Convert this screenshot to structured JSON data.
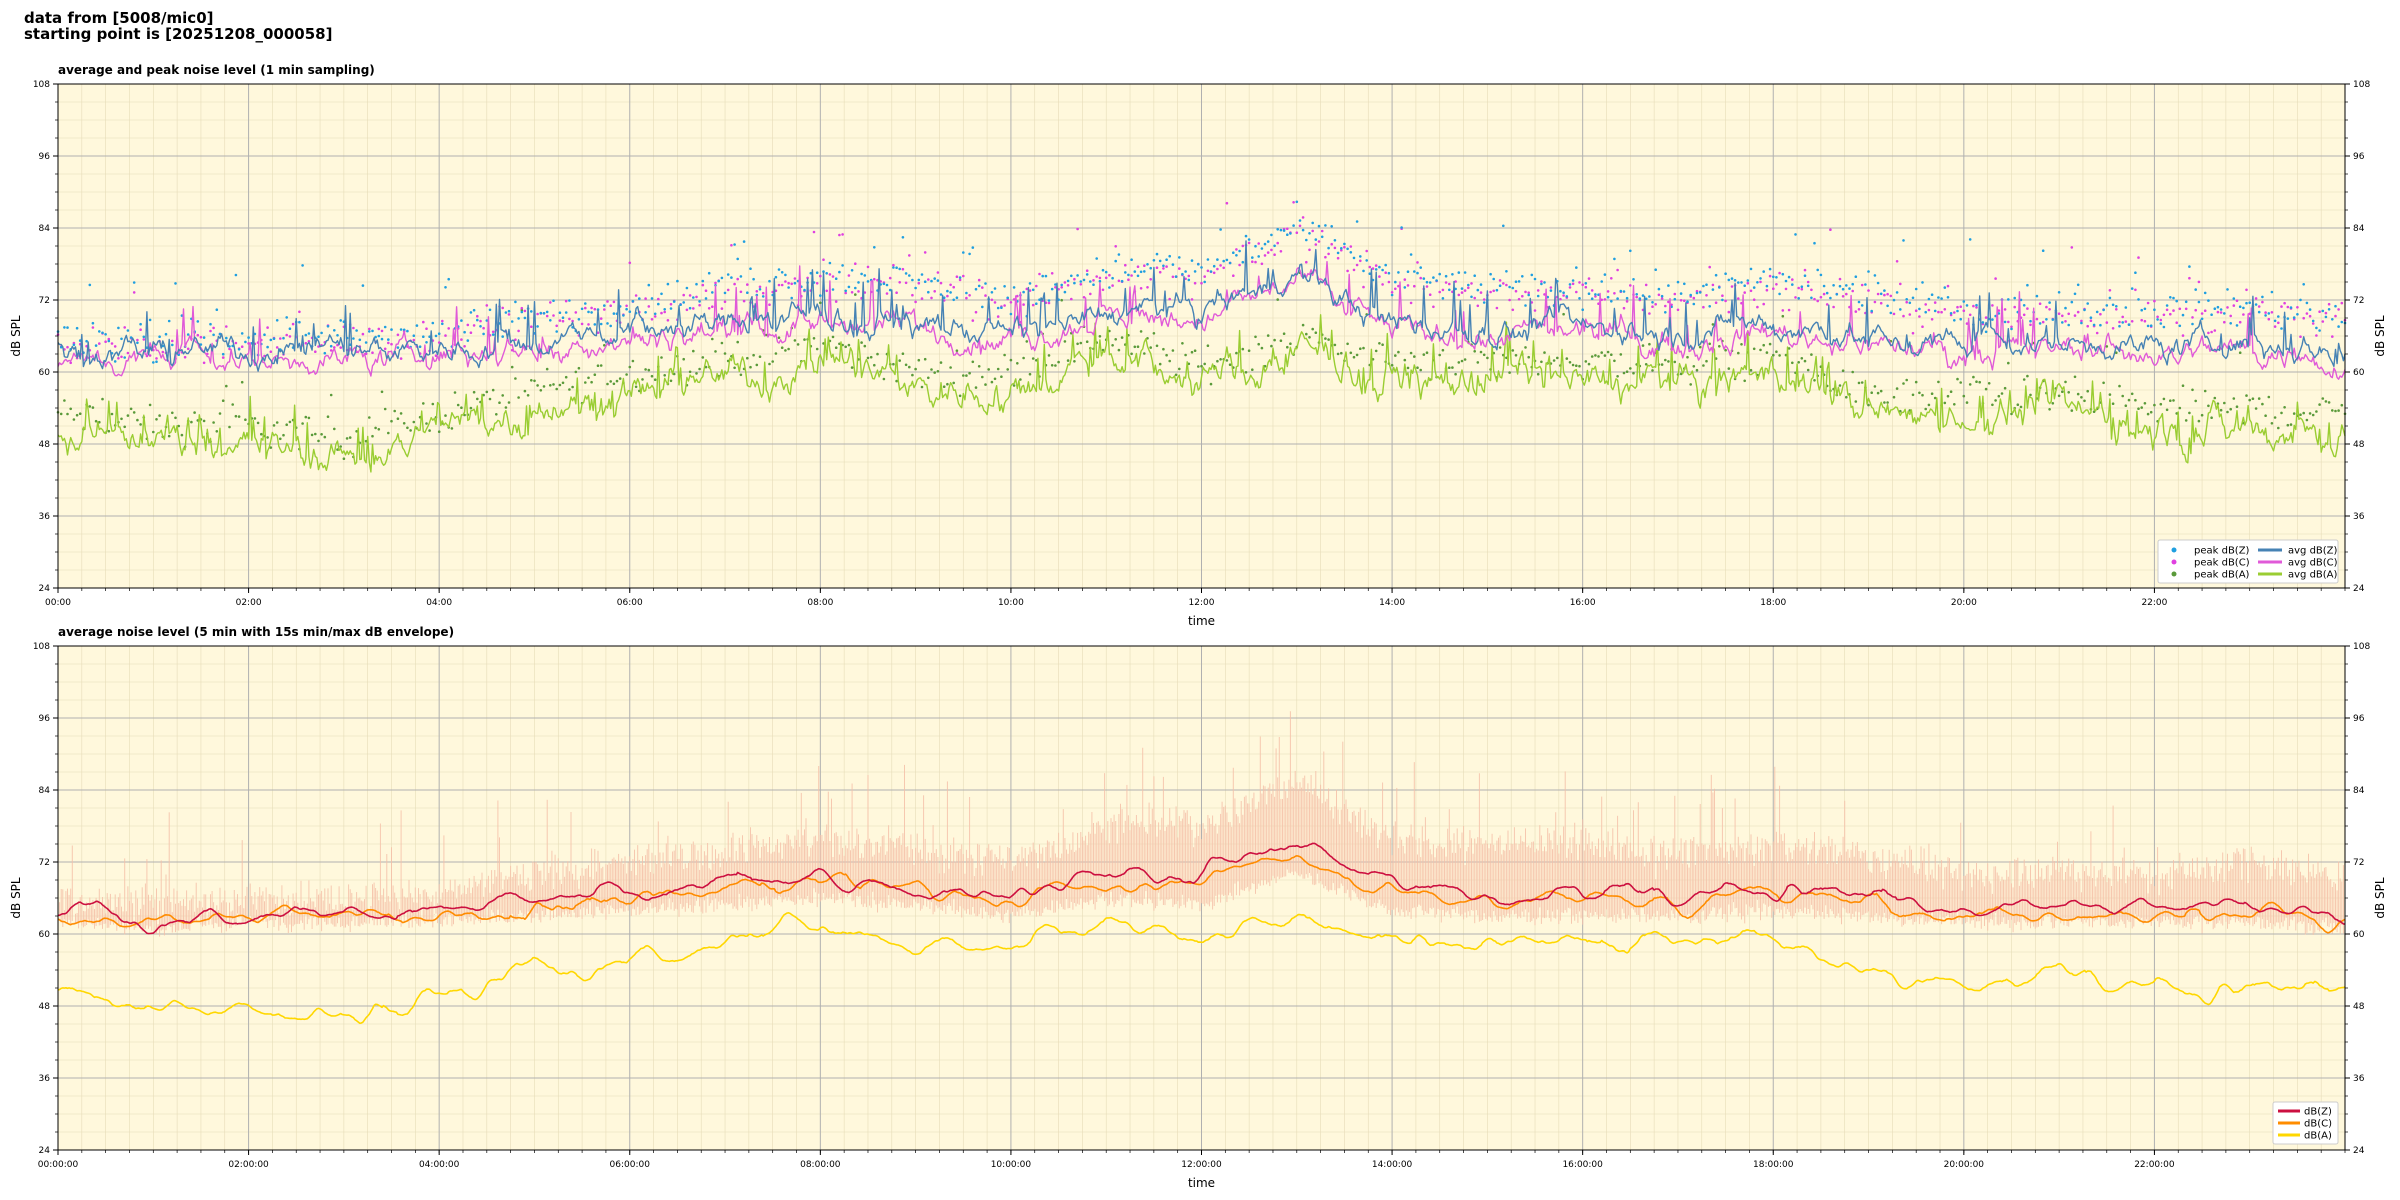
{
  "header": {
    "line1": "data from [5008/mic0]",
    "line2": "starting point is [20251208_000058]"
  },
  "colors": {
    "background": "#fff8dc",
    "peak_z": "#1f9fe0",
    "peak_c": "#e040e0",
    "peak_a": "#5a9a3a",
    "avg_z": "#4682b4",
    "avg_c": "#e05ad8",
    "avg_a": "#9acd32",
    "db_z": "#cc1040",
    "db_c": "#ff8c00",
    "db_a": "#ffd700",
    "envelope": "#f5c0a8"
  },
  "chart_data": [
    {
      "type": "line",
      "title": "average and peak noise level (1 min sampling)",
      "xlabel": "time",
      "ylabel": "dB SPL",
      "ylim": [
        24,
        108
      ],
      "xlim_hours": [
        0,
        24
      ],
      "yticks": [
        "24",
        "36",
        "48",
        "60",
        "72",
        "84",
        "96",
        "108"
      ],
      "xtick_labels": [
        "00:00",
        "02:00",
        "04:00",
        "06:00",
        "08:00",
        "10:00",
        "12:00",
        "14:00",
        "16:00",
        "18:00",
        "20:00",
        "22:00"
      ],
      "grid": true,
      "legend_position": "bottom-right",
      "legend": [
        {
          "name": "peak dB(Z)",
          "kind": "dot",
          "color_key": "peak_z"
        },
        {
          "name": "peak dB(C)",
          "kind": "dot",
          "color_key": "peak_c"
        },
        {
          "name": "peak dB(A)",
          "kind": "dot",
          "color_key": "peak_a"
        },
        {
          "name": "avg dB(Z)",
          "kind": "line",
          "color_key": "avg_z"
        },
        {
          "name": "avg dB(C)",
          "kind": "line",
          "color_key": "avg_c"
        },
        {
          "name": "avg dB(A)",
          "kind": "line",
          "color_key": "avg_a"
        }
      ],
      "x": [
        0,
        1,
        2,
        3,
        4,
        5,
        6,
        7,
        8,
        9,
        10,
        11,
        12,
        13,
        14,
        15,
        16,
        17,
        18,
        19,
        20,
        21,
        22,
        23,
        24
      ],
      "series": [
        {
          "name": "avg dB(Z)",
          "values": [
            64,
            63,
            64,
            64,
            64,
            65,
            67,
            68,
            69,
            68,
            66,
            70,
            70,
            76,
            68,
            67,
            67,
            66,
            68,
            66,
            64,
            65,
            64,
            65,
            63
          ]
        },
        {
          "name": "avg dB(C)",
          "values": [
            62,
            62,
            62,
            62,
            63,
            64,
            66,
            67,
            68,
            67,
            65,
            69,
            69,
            75,
            67,
            66,
            66,
            65,
            67,
            65,
            63,
            64,
            63,
            64,
            62
          ]
        },
        {
          "name": "avg dB(A)",
          "values": [
            50,
            48,
            48,
            46,
            50,
            54,
            57,
            59,
            62,
            57,
            57,
            63,
            58,
            63,
            59,
            59,
            59,
            58,
            60,
            53,
            53,
            53,
            51,
            51,
            50
          ]
        },
        {
          "name": "peak dB(Z)",
          "values": [
            66,
            65,
            66,
            66,
            66,
            69,
            71,
            74,
            76,
            75,
            72,
            77,
            77,
            84,
            76,
            74,
            74,
            73,
            75,
            73,
            70,
            71,
            70,
            71,
            69
          ]
        },
        {
          "name": "peak dB(C)",
          "values": [
            65,
            64,
            65,
            65,
            65,
            68,
            70,
            73,
            75,
            74,
            71,
            76,
            76,
            83,
            75,
            73,
            73,
            72,
            74,
            72,
            69,
            70,
            69,
            70,
            68
          ]
        },
        {
          "name": "peak dB(A)",
          "values": [
            53,
            51,
            51,
            49,
            53,
            57,
            60,
            62,
            65,
            60,
            60,
            66,
            61,
            66,
            62,
            62,
            62,
            61,
            63,
            56,
            56,
            56,
            54,
            54,
            53
          ]
        }
      ]
    },
    {
      "type": "line",
      "title": "average noise level (5 min with 15s min/max dB envelope)",
      "xlabel": "time",
      "ylabel": "dB SPL",
      "ylim": [
        24,
        108
      ],
      "xlim_hours": [
        0,
        24
      ],
      "yticks": [
        "24",
        "36",
        "48",
        "60",
        "72",
        "84",
        "96",
        "108"
      ],
      "xtick_labels": [
        "00:00:00",
        "02:00:00",
        "04:00:00",
        "06:00:00",
        "08:00:00",
        "10:00:00",
        "12:00:00",
        "14:00:00",
        "16:00:00",
        "18:00:00",
        "20:00:00",
        "22:00:00"
      ],
      "grid": true,
      "legend_position": "bottom-right",
      "legend": [
        {
          "name": "dB(Z)",
          "kind": "line",
          "color_key": "db_z"
        },
        {
          "name": "dB(C)",
          "kind": "line",
          "color_key": "db_c"
        },
        {
          "name": "dB(A)",
          "kind": "line",
          "color_key": "db_a"
        }
      ],
      "x": [
        0,
        1,
        2,
        3,
        4,
        5,
        6,
        7,
        8,
        9,
        10,
        11,
        12,
        13,
        14,
        15,
        16,
        17,
        18,
        19,
        20,
        21,
        22,
        23,
        24
      ],
      "series": [
        {
          "name": "dB(Z)",
          "values": [
            64,
            63,
            64,
            64,
            64,
            65,
            67,
            68,
            70,
            68,
            66,
            70,
            70,
            76,
            68,
            67,
            67,
            66,
            68,
            66,
            64,
            65,
            64,
            65,
            63
          ]
        },
        {
          "name": "dB(C)",
          "values": [
            63,
            62,
            63,
            63,
            63,
            64,
            66,
            67,
            69,
            67,
            65,
            69,
            68,
            74,
            67,
            66,
            66,
            65,
            67,
            65,
            63,
            64,
            63,
            64,
            62
          ]
        },
        {
          "name": "dB(A)",
          "values": [
            51,
            48,
            48,
            46,
            50,
            54,
            57,
            59,
            62,
            57,
            57,
            63,
            58,
            63,
            59,
            59,
            59,
            58,
            60,
            53,
            53,
            53,
            51,
            51,
            50
          ]
        },
        {
          "name": "envelope max",
          "values": [
            66,
            65,
            66,
            66,
            67,
            70,
            72,
            74,
            76,
            74,
            72,
            78,
            78,
            86,
            76,
            75,
            75,
            73,
            75,
            73,
            70,
            71,
            70,
            72,
            69
          ]
        },
        {
          "name": "envelope min",
          "values": [
            62,
            61,
            62,
            62,
            62,
            63,
            64,
            65,
            66,
            65,
            63,
            66,
            65,
            70,
            64,
            63,
            63,
            63,
            64,
            63,
            62,
            62,
            62,
            62,
            61
          ]
        }
      ]
    }
  ]
}
